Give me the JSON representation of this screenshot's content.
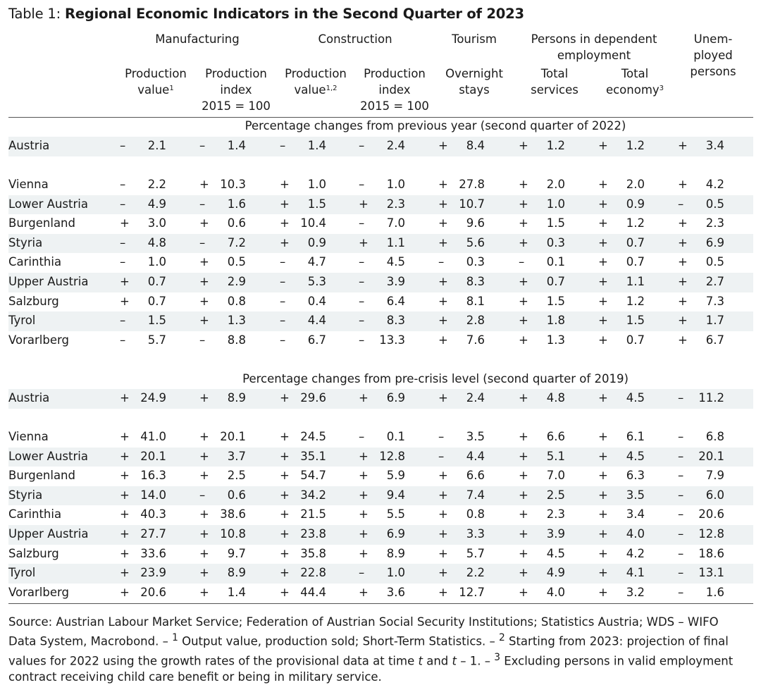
{
  "title": {
    "prefix": "Table 1: ",
    "main": "Regional Economic Indicators in the Second Quarter of 2023"
  },
  "header": {
    "groups": {
      "manufacturing": "Manufacturing",
      "construction": "Construction",
      "tourism": "Tourism",
      "employment_line1": "Persons in dependent",
      "employment_line2": "employment",
      "unemployed_line1": "Unem-",
      "unemployed_line2": "ployed",
      "unemployed_line3": "persons"
    },
    "columns": {
      "mfg_value_1": "Production",
      "mfg_value_2": "value",
      "mfg_value_sup": "1",
      "mfg_index_1": "Production",
      "mfg_index_2": "index",
      "mfg_index_3": "2015 = 100",
      "con_value_1": "Production",
      "con_value_2": "value",
      "con_value_sup": "1,2",
      "con_index_1": "Production",
      "con_index_2": "index",
      "con_index_3": "2015 = 100",
      "tour_1": "Overnight",
      "tour_2": "stays",
      "serv_1": "Total",
      "serv_2": "services",
      "econ_1": "Total",
      "econ_2": "economy",
      "econ_sup": "3"
    }
  },
  "sections": [
    {
      "label": "Percentage changes from previous year (second quarter of 2022)",
      "total": {
        "name": "Austria",
        "values": [
          [
            "–",
            "2.1"
          ],
          [
            "–",
            "1.4"
          ],
          [
            "–",
            "1.4"
          ],
          [
            "–",
            "2.4"
          ],
          [
            "+",
            "8.4"
          ],
          [
            "+",
            "1.2"
          ],
          [
            "+",
            "1.2"
          ],
          [
            "+",
            "3.4"
          ]
        ]
      },
      "rows": [
        {
          "name": "Vienna",
          "values": [
            [
              "–",
              "2.2"
            ],
            [
              "+",
              "10.3"
            ],
            [
              "+",
              "1.0"
            ],
            [
              "–",
              "1.0"
            ],
            [
              "+",
              "27.8"
            ],
            [
              "+",
              "2.0"
            ],
            [
              "+",
              "2.0"
            ],
            [
              "+",
              "4.2"
            ]
          ]
        },
        {
          "name": "Lower Austria",
          "values": [
            [
              "–",
              "4.9"
            ],
            [
              "–",
              "1.6"
            ],
            [
              "+",
              "1.5"
            ],
            [
              "+",
              "2.3"
            ],
            [
              "+",
              "10.7"
            ],
            [
              "+",
              "1.0"
            ],
            [
              "+",
              "0.9"
            ],
            [
              "–",
              "0.5"
            ]
          ]
        },
        {
          "name": "Burgenland",
          "values": [
            [
              "+",
              "3.0"
            ],
            [
              "+",
              "0.6"
            ],
            [
              "+",
              "10.4"
            ],
            [
              "–",
              "7.0"
            ],
            [
              "+",
              "9.6"
            ],
            [
              "+",
              "1.5"
            ],
            [
              "+",
              "1.2"
            ],
            [
              "+",
              "2.3"
            ]
          ]
        },
        {
          "name": "Styria",
          "values": [
            [
              "–",
              "4.8"
            ],
            [
              "–",
              "7.2"
            ],
            [
              "+",
              "0.9"
            ],
            [
              "+",
              "1.1"
            ],
            [
              "+",
              "5.6"
            ],
            [
              "+",
              "0.3"
            ],
            [
              "+",
              "0.7"
            ],
            [
              "+",
              "6.9"
            ]
          ]
        },
        {
          "name": "Carinthia",
          "values": [
            [
              "–",
              "1.0"
            ],
            [
              "+",
              "0.5"
            ],
            [
              "–",
              "4.7"
            ],
            [
              "–",
              "4.5"
            ],
            [
              "–",
              "0.3"
            ],
            [
              "–",
              "0.1"
            ],
            [
              "+",
              "0.7"
            ],
            [
              "+",
              "0.5"
            ]
          ]
        },
        {
          "name": "Upper Austria",
          "values": [
            [
              "+",
              "0.7"
            ],
            [
              "+",
              "2.9"
            ],
            [
              "–",
              "5.3"
            ],
            [
              "–",
              "3.9"
            ],
            [
              "+",
              "8.3"
            ],
            [
              "+",
              "0.7"
            ],
            [
              "+",
              "1.1"
            ],
            [
              "+",
              "2.7"
            ]
          ]
        },
        {
          "name": "Salzburg",
          "values": [
            [
              "+",
              "0.7"
            ],
            [
              "+",
              "0.8"
            ],
            [
              "–",
              "0.4"
            ],
            [
              "–",
              "6.4"
            ],
            [
              "+",
              "8.1"
            ],
            [
              "+",
              "1.5"
            ],
            [
              "+",
              "1.2"
            ],
            [
              "+",
              "7.3"
            ]
          ]
        },
        {
          "name": "Tyrol",
          "values": [
            [
              "–",
              "1.5"
            ],
            [
              "+",
              "1.3"
            ],
            [
              "–",
              "4.4"
            ],
            [
              "–",
              "8.3"
            ],
            [
              "+",
              "2.8"
            ],
            [
              "+",
              "1.8"
            ],
            [
              "+",
              "1.5"
            ],
            [
              "+",
              "1.7"
            ]
          ]
        },
        {
          "name": "Vorarlberg",
          "values": [
            [
              "–",
              "5.7"
            ],
            [
              "–",
              "8.8"
            ],
            [
              "–",
              "6.7"
            ],
            [
              "–",
              "13.3"
            ],
            [
              "+",
              "7.6"
            ],
            [
              "+",
              "1.3"
            ],
            [
              "+",
              "0.7"
            ],
            [
              "+",
              "6.7"
            ]
          ]
        }
      ]
    },
    {
      "label": "Percentage changes from pre-crisis level (second quarter of 2019)",
      "total": {
        "name": "Austria",
        "values": [
          [
            "+",
            "24.9"
          ],
          [
            "+",
            "8.9"
          ],
          [
            "+",
            "29.6"
          ],
          [
            "+",
            "6.9"
          ],
          [
            "+",
            "2.4"
          ],
          [
            "+",
            "4.8"
          ],
          [
            "+",
            "4.5"
          ],
          [
            "–",
            "11.2"
          ]
        ]
      },
      "rows": [
        {
          "name": "Vienna",
          "values": [
            [
              "+",
              "41.0"
            ],
            [
              "+",
              "20.1"
            ],
            [
              "+",
              "24.5"
            ],
            [
              "–",
              "0.1"
            ],
            [
              "–",
              "3.5"
            ],
            [
              "+",
              "6.6"
            ],
            [
              "+",
              "6.1"
            ],
            [
              "–",
              "6.8"
            ]
          ]
        },
        {
          "name": "Lower Austria",
          "values": [
            [
              "+",
              "20.1"
            ],
            [
              "+",
              "3.7"
            ],
            [
              "+",
              "35.1"
            ],
            [
              "+",
              "12.8"
            ],
            [
              "–",
              "4.4"
            ],
            [
              "+",
              "5.1"
            ],
            [
              "+",
              "4.5"
            ],
            [
              "–",
              "20.1"
            ]
          ]
        },
        {
          "name": "Burgenland",
          "values": [
            [
              "+",
              "16.3"
            ],
            [
              "+",
              "2.5"
            ],
            [
              "+",
              "54.7"
            ],
            [
              "+",
              "5.9"
            ],
            [
              "+",
              "6.6"
            ],
            [
              "+",
              "7.0"
            ],
            [
              "+",
              "6.3"
            ],
            [
              "–",
              "7.9"
            ]
          ]
        },
        {
          "name": "Styria",
          "values": [
            [
              "+",
              "14.0"
            ],
            [
              "–",
              "0.6"
            ],
            [
              "+",
              "34.2"
            ],
            [
              "+",
              "9.4"
            ],
            [
              "+",
              "7.4"
            ],
            [
              "+",
              "2.5"
            ],
            [
              "+",
              "3.5"
            ],
            [
              "–",
              "6.0"
            ]
          ]
        },
        {
          "name": "Carinthia",
          "values": [
            [
              "+",
              "40.3"
            ],
            [
              "+",
              "38.6"
            ],
            [
              "+",
              "21.5"
            ],
            [
              "+",
              "5.5"
            ],
            [
              "+",
              "0.8"
            ],
            [
              "+",
              "2.3"
            ],
            [
              "+",
              "3.4"
            ],
            [
              "–",
              "20.6"
            ]
          ]
        },
        {
          "name": "Upper Austria",
          "values": [
            [
              "+",
              "27.7"
            ],
            [
              "+",
              "10.8"
            ],
            [
              "+",
              "23.8"
            ],
            [
              "+",
              "6.9"
            ],
            [
              "+",
              "3.3"
            ],
            [
              "+",
              "3.9"
            ],
            [
              "+",
              "4.0"
            ],
            [
              "–",
              "12.8"
            ]
          ]
        },
        {
          "name": "Salzburg",
          "values": [
            [
              "+",
              "33.6"
            ],
            [
              "+",
              "9.7"
            ],
            [
              "+",
              "35.8"
            ],
            [
              "+",
              "8.9"
            ],
            [
              "+",
              "5.7"
            ],
            [
              "+",
              "4.5"
            ],
            [
              "+",
              "4.2"
            ],
            [
              "–",
              "18.6"
            ]
          ]
        },
        {
          "name": "Tyrol",
          "values": [
            [
              "+",
              "23.9"
            ],
            [
              "+",
              "8.9"
            ],
            [
              "+",
              "22.8"
            ],
            [
              "–",
              "1.0"
            ],
            [
              "+",
              "2.2"
            ],
            [
              "+",
              "4.9"
            ],
            [
              "+",
              "4.1"
            ],
            [
              "–",
              "13.1"
            ]
          ]
        },
        {
          "name": "Vorarlberg",
          "values": [
            [
              "+",
              "20.6"
            ],
            [
              "+",
              "1.4"
            ],
            [
              "+",
              "44.4"
            ],
            [
              "+",
              "3.6"
            ],
            [
              "+",
              "12.7"
            ],
            [
              "+",
              "4.0"
            ],
            [
              "+",
              "3.2"
            ],
            [
              "–",
              "1.6"
            ]
          ]
        }
      ]
    }
  ],
  "footnote": {
    "part1": "Source: Austrian Labour Market Service; Federation of Austrian Social Security Institutions; Statistics Austria; WDS – WIFO Data System, Macrobond. – ",
    "sup1": "1",
    "part2": " Output value, production sold; Short-Term Statistics. – ",
    "sup2": "2",
    "part3": " Starting from 2023: projection of final values for 2022 using the growth rates of the provisional data at time ",
    "t1": "t",
    "part4": " and ",
    "t2": "t",
    "part5": " – 1. – ",
    "sup3": "3",
    "part6": " Excluding persons in valid employment contract receiving child care benefit or being in military service."
  }
}
